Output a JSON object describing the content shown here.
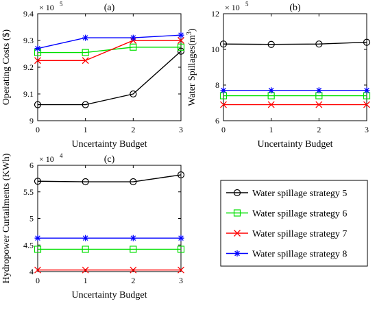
{
  "legend": {
    "placement": "bottom-right",
    "entries": [
      {
        "label": "Water spillage strategy 5",
        "color": "#000000",
        "marker": "circle"
      },
      {
        "label": "Water spillage strategy 6",
        "color": "#00e000",
        "marker": "square"
      },
      {
        "label": "Water spillage strategy 7",
        "color": "#ff0000",
        "marker": "x"
      },
      {
        "label": "Water spillage strategy 8",
        "color": "#0000ff",
        "marker": "asterisk"
      }
    ]
  },
  "chart_data": [
    {
      "type": "line",
      "panel": "(a)",
      "title": "(a)",
      "xlabel": "Uncertainty Budget",
      "ylabel": "Operating Costs ($)",
      "exponent": "× 10",
      "exponent_power": "5",
      "x": [
        0,
        1,
        2,
        3
      ],
      "xticks": [
        "0",
        "1",
        "2",
        "3"
      ],
      "xlim": [
        0,
        3
      ],
      "yticks": [
        "9",
        "9.1",
        "9.2",
        "9.3",
        "9.4"
      ],
      "ylim": [
        9.0,
        9.4
      ],
      "grid": false,
      "series": [
        {
          "name": "Water spillage strategy 5",
          "color": "#000000",
          "marker": "circle",
          "values": [
            9.06,
            9.06,
            9.1,
            9.26
          ]
        },
        {
          "name": "Water spillage strategy 6",
          "color": "#00e000",
          "marker": "square",
          "values": [
            9.255,
            9.255,
            9.275,
            9.275
          ]
        },
        {
          "name": "Water spillage strategy 7",
          "color": "#ff0000",
          "marker": "x",
          "values": [
            9.225,
            9.225,
            9.3,
            9.3
          ]
        },
        {
          "name": "Water spillage strategy 8",
          "color": "#0000ff",
          "marker": "asterisk",
          "values": [
            9.27,
            9.31,
            9.31,
            9.32
          ]
        }
      ]
    },
    {
      "type": "line",
      "panel": "(b)",
      "title": "(b)",
      "xlabel": "Uncertainty Budget",
      "ylabel": "Water Spillages(m",
      "ylabel_sup": "3",
      "ylabel_tail": ")",
      "exponent": "× 10",
      "exponent_power": "5",
      "x": [
        0,
        1,
        2,
        3
      ],
      "xticks": [
        "0",
        "1",
        "2",
        "3"
      ],
      "xlim": [
        0,
        3
      ],
      "yticks": [
        "6",
        "8",
        "10",
        "12"
      ],
      "ylim": [
        6,
        12
      ],
      "grid": false,
      "series": [
        {
          "name": "Water spillage strategy 5",
          "color": "#000000",
          "marker": "circle",
          "values": [
            10.3,
            10.28,
            10.3,
            10.4
          ]
        },
        {
          "name": "Water spillage strategy 6",
          "color": "#00e000",
          "marker": "square",
          "values": [
            7.4,
            7.4,
            7.4,
            7.4
          ]
        },
        {
          "name": "Water spillage strategy 7",
          "color": "#ff0000",
          "marker": "x",
          "values": [
            6.9,
            6.9,
            6.9,
            6.9
          ]
        },
        {
          "name": "Water spillage strategy 8",
          "color": "#0000ff",
          "marker": "asterisk",
          "values": [
            7.7,
            7.7,
            7.7,
            7.7
          ]
        }
      ]
    },
    {
      "type": "line",
      "panel": "(c)",
      "title": "(c)",
      "xlabel": "Uncertainty Budget",
      "ylabel": "Hydropower Curtailments (KWh)",
      "exponent": "× 10",
      "exponent_power": "4",
      "x": [
        0,
        1,
        2,
        3
      ],
      "xticks": [
        "0",
        "1",
        "2",
        "3"
      ],
      "xlim": [
        0,
        3
      ],
      "yticks": [
        "4",
        "4.5",
        "5",
        "5.5",
        "6"
      ],
      "ylim": [
        4.0,
        6.0
      ],
      "grid": false,
      "series": [
        {
          "name": "Water spillage strategy 5",
          "color": "#000000",
          "marker": "circle",
          "values": [
            5.7,
            5.69,
            5.69,
            5.82
          ]
        },
        {
          "name": "Water spillage strategy 6",
          "color": "#00e000",
          "marker": "square",
          "values": [
            4.42,
            4.42,
            4.42,
            4.42
          ]
        },
        {
          "name": "Water spillage strategy 7",
          "color": "#ff0000",
          "marker": "x",
          "values": [
            4.03,
            4.03,
            4.03,
            4.03
          ]
        },
        {
          "name": "Water spillage strategy 8",
          "color": "#0000ff",
          "marker": "asterisk",
          "values": [
            4.63,
            4.63,
            4.63,
            4.63
          ]
        }
      ]
    }
  ]
}
